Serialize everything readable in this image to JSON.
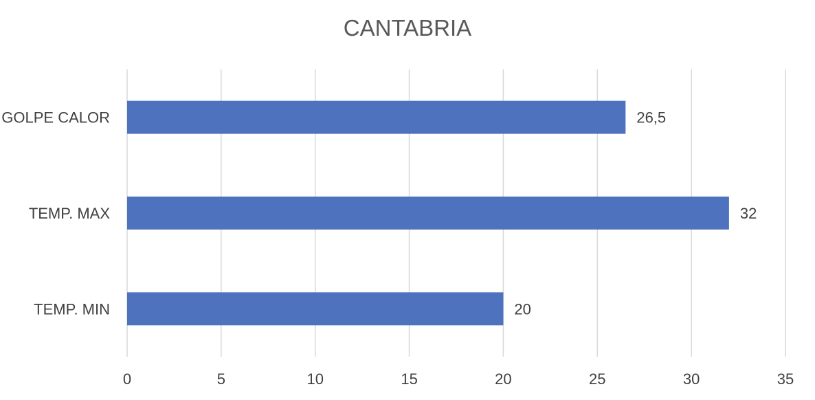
{
  "chart_data": {
    "type": "bar",
    "orientation": "horizontal",
    "title": "CANTABRIA",
    "categories": [
      "GOLPE CALOR",
      "TEMP. MAX",
      "TEMP. MIN"
    ],
    "values": [
      26.5,
      32,
      20
    ],
    "value_labels": [
      "26,5",
      "32",
      "20"
    ],
    "xlim": [
      0,
      35
    ],
    "x_ticks": [
      0,
      5,
      10,
      15,
      20,
      25,
      30,
      35
    ],
    "grid": true,
    "legend": "none",
    "bar_color": "#4E72BE",
    "grid_color": "#D9D9D9"
  }
}
